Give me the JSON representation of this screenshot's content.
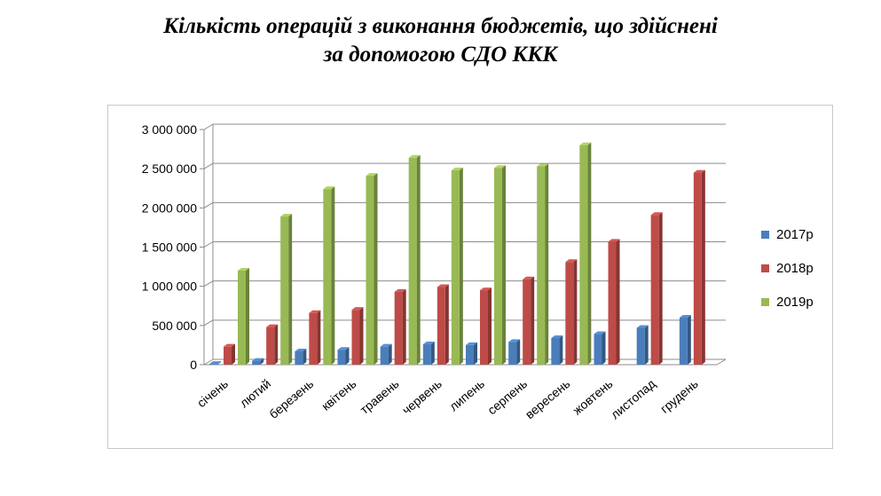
{
  "title": {
    "line1": "Кількість операцій з виконання бюджетів, що здійснені",
    "line2": "за допомогою СДО ККК"
  },
  "chart_data": {
    "type": "bar",
    "categories": [
      "січень",
      "лютий",
      "березень",
      "квітень",
      "травень",
      "червень",
      "липень",
      "серпень",
      "вересень",
      "жовтень",
      "листопад",
      "грудень"
    ],
    "series": [
      {
        "name": "2017р",
        "color": "#4a7ebb",
        "values": [
          10000,
          50000,
          170000,
          190000,
          230000,
          260000,
          250000,
          290000,
          340000,
          390000,
          470000,
          600000
        ]
      },
      {
        "name": "2018р",
        "color": "#be4b48",
        "values": [
          230000,
          480000,
          660000,
          700000,
          930000,
          990000,
          950000,
          1090000,
          1310000,
          1570000,
          1910000,
          2450000
        ]
      },
      {
        "name": "2019р",
        "color": "#98b954",
        "values": [
          1200000,
          1890000,
          2240000,
          2410000,
          2640000,
          2480000,
          2510000,
          2530000,
          2800000,
          null,
          null,
          null
        ]
      }
    ],
    "ylim": [
      0,
      3000000
    ],
    "yticks": [
      0,
      500000,
      1000000,
      1500000,
      2000000,
      2500000,
      3000000
    ],
    "ytick_labels": [
      "0",
      "500 000",
      "1 000 000",
      "1 500 000",
      "2 000 000",
      "2 500 000",
      "3 000 000"
    ],
    "grid": true,
    "legend_position": "right"
  }
}
